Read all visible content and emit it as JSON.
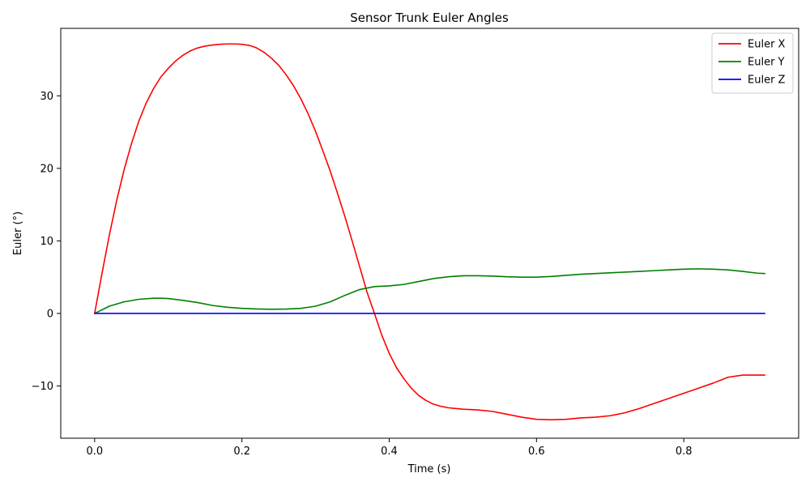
{
  "chart_data": {
    "type": "line",
    "title": "Sensor Trunk Euler Angles",
    "xlabel": "Time (s)",
    "ylabel": "Euler (°)",
    "xlim": [
      -0.046,
      0.956
    ],
    "ylim": [
      -17.2,
      39.3
    ],
    "xticks": [
      0.0,
      0.2,
      0.4,
      0.6,
      0.8
    ],
    "xtick_labels": [
      "0.0",
      "0.2",
      "0.4",
      "0.6",
      "0.8"
    ],
    "yticks": [
      -10,
      0,
      10,
      20,
      30
    ],
    "ytick_labels": [
      "−10",
      "0",
      "10",
      "20",
      "30"
    ],
    "grid": false,
    "legend_position": "top-right",
    "series": [
      {
        "name": "Euler X",
        "color": "#ff0000",
        "x": [
          0.0,
          0.01,
          0.02,
          0.03,
          0.04,
          0.05,
          0.06,
          0.07,
          0.08,
          0.09,
          0.1,
          0.11,
          0.12,
          0.13,
          0.14,
          0.15,
          0.16,
          0.17,
          0.18,
          0.19,
          0.2,
          0.21,
          0.22,
          0.23,
          0.24,
          0.25,
          0.26,
          0.27,
          0.28,
          0.29,
          0.3,
          0.31,
          0.32,
          0.33,
          0.34,
          0.35,
          0.36,
          0.37,
          0.38,
          0.39,
          0.4,
          0.41,
          0.42,
          0.43,
          0.44,
          0.45,
          0.46,
          0.47,
          0.48,
          0.49,
          0.5,
          0.52,
          0.54,
          0.56,
          0.58,
          0.6,
          0.62,
          0.64,
          0.65,
          0.66,
          0.68,
          0.7,
          0.72,
          0.74,
          0.76,
          0.78,
          0.8,
          0.82,
          0.84,
          0.86,
          0.88,
          0.9,
          0.91
        ],
        "y": [
          0.0,
          5.5,
          10.8,
          15.6,
          19.8,
          23.4,
          26.5,
          29.0,
          31.0,
          32.6,
          33.8,
          34.8,
          35.6,
          36.2,
          36.6,
          36.85,
          37.0,
          37.1,
          37.15,
          37.15,
          37.1,
          36.95,
          36.6,
          36.0,
          35.2,
          34.2,
          32.9,
          31.4,
          29.6,
          27.5,
          25.1,
          22.4,
          19.6,
          16.5,
          13.3,
          9.9,
          6.4,
          2.9,
          0.0,
          -3.0,
          -5.5,
          -7.5,
          -9.0,
          -10.3,
          -11.3,
          -12.0,
          -12.5,
          -12.8,
          -13.0,
          -13.1,
          -13.2,
          -13.3,
          -13.5,
          -13.9,
          -14.3,
          -14.6,
          -14.65,
          -14.6,
          -14.5,
          -14.4,
          -14.3,
          -14.1,
          -13.7,
          -13.1,
          -12.4,
          -11.7,
          -11.0,
          -10.3,
          -9.6,
          -8.8,
          -8.5,
          -8.5,
          -8.5
        ]
      },
      {
        "name": "Euler Y",
        "color": "#008000",
        "x": [
          0.0,
          0.02,
          0.04,
          0.06,
          0.08,
          0.09,
          0.1,
          0.12,
          0.14,
          0.16,
          0.18,
          0.2,
          0.22,
          0.24,
          0.26,
          0.28,
          0.3,
          0.32,
          0.34,
          0.36,
          0.38,
          0.4,
          0.42,
          0.44,
          0.46,
          0.48,
          0.5,
          0.52,
          0.54,
          0.56,
          0.58,
          0.6,
          0.62,
          0.64,
          0.66,
          0.68,
          0.7,
          0.72,
          0.74,
          0.76,
          0.78,
          0.8,
          0.82,
          0.84,
          0.86,
          0.88,
          0.9,
          0.91
        ],
        "y": [
          0.0,
          1.0,
          1.6,
          1.95,
          2.1,
          2.1,
          2.05,
          1.8,
          1.5,
          1.1,
          0.85,
          0.7,
          0.62,
          0.58,
          0.6,
          0.7,
          1.0,
          1.6,
          2.5,
          3.3,
          3.7,
          3.8,
          4.0,
          4.4,
          4.8,
          5.05,
          5.2,
          5.2,
          5.15,
          5.05,
          5.0,
          5.0,
          5.1,
          5.25,
          5.4,
          5.5,
          5.6,
          5.7,
          5.8,
          5.9,
          6.0,
          6.1,
          6.15,
          6.1,
          6.0,
          5.8,
          5.55,
          5.5
        ]
      },
      {
        "name": "Euler Z",
        "color": "#0000ff",
        "x": [
          0.0,
          0.91
        ],
        "y": [
          0.0,
          0.0
        ]
      }
    ]
  }
}
